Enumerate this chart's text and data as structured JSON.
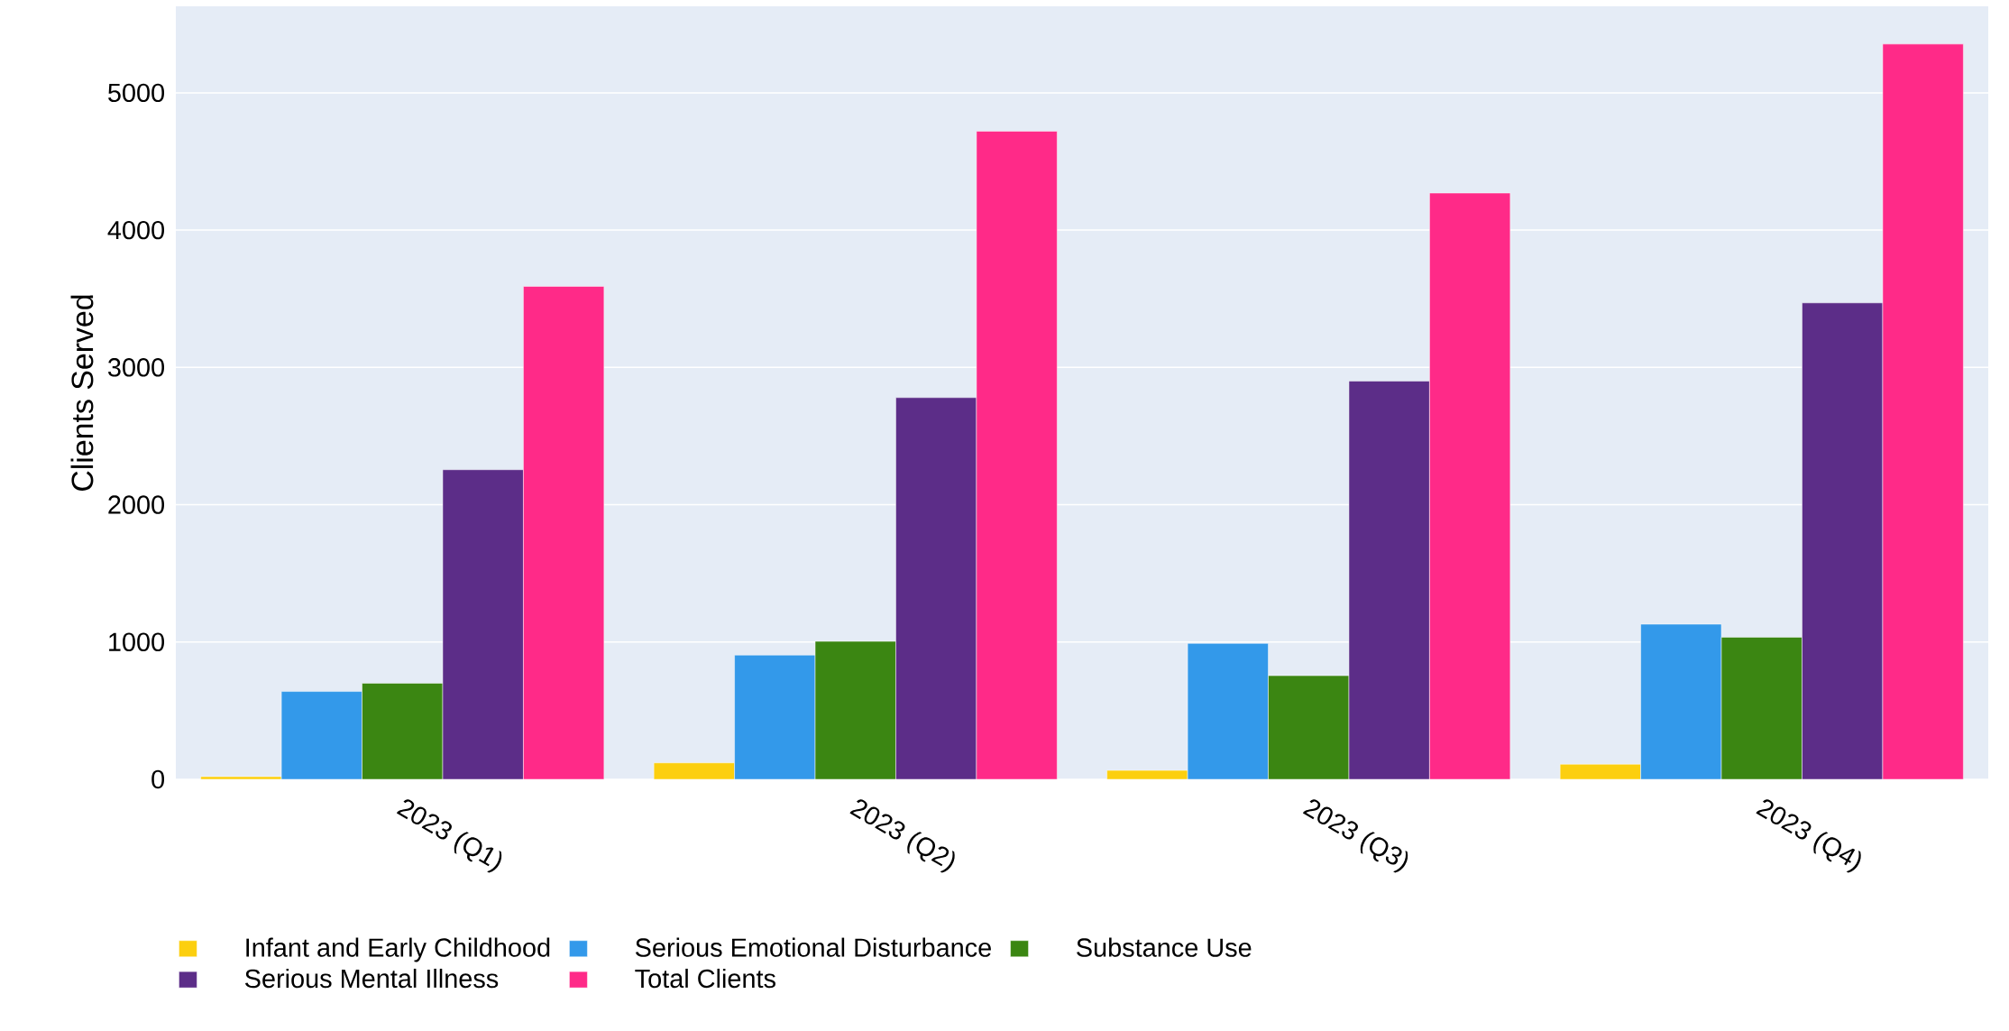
{
  "chart_data": {
    "type": "bar",
    "ylabel": "Clients Served",
    "categories": [
      "2023 (Q1)",
      "2023 (Q2)",
      "2023 (Q3)",
      "2023 (Q4)"
    ],
    "series": [
      {
        "name": "Infant and Early Childhood",
        "color": "#fccf0f",
        "values": [
          20,
          120,
          65,
          110
        ]
      },
      {
        "name": "Serious Emotional Disturbance",
        "color": "#3399ea",
        "values": [
          640,
          905,
          990,
          1130
        ]
      },
      {
        "name": "Substance Use",
        "color": "#3b8612",
        "values": [
          700,
          1005,
          755,
          1035
        ]
      },
      {
        "name": "Serious Mental Illness",
        "color": "#5c2d88",
        "values": [
          2255,
          2780,
          2900,
          3470
        ]
      },
      {
        "name": "Total Clients",
        "color": "#ff2a88",
        "values": [
          3590,
          4720,
          4270,
          5355
        ]
      }
    ],
    "ylim": [
      0,
      5630
    ],
    "yticks": [
      0,
      1000,
      2000,
      3000,
      4000,
      5000
    ],
    "grid": "y",
    "legend": "bottom"
  }
}
